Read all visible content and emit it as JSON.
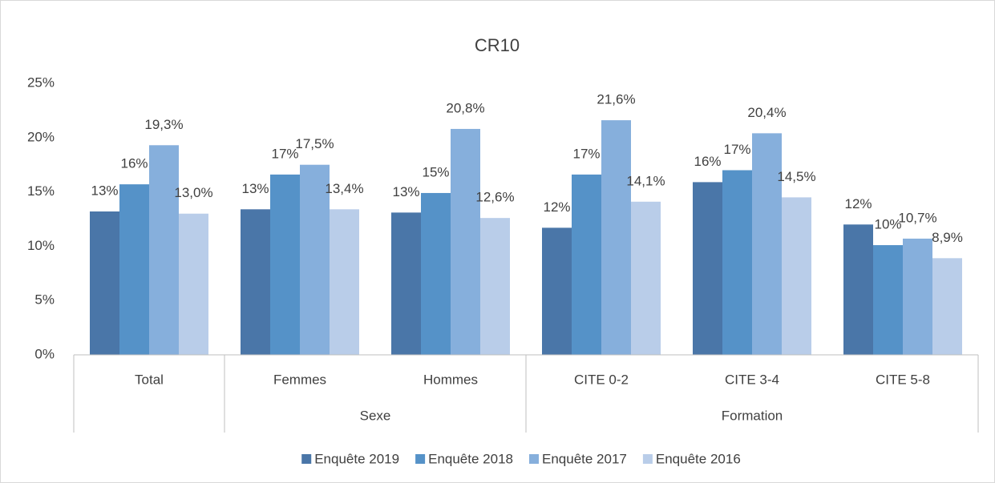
{
  "chart_data": {
    "type": "bar",
    "title": "CR10",
    "categories": [
      "Total",
      "Femmes",
      "Hommes",
      "CITE 0-2",
      "CITE 3-4",
      "CITE 5-8"
    ],
    "category_groups": [
      null,
      "Sexe",
      "Sexe",
      "Formation",
      "Formation",
      "Formation"
    ],
    "series": [
      {
        "name": "Enquête 2019",
        "color": "#4a76a8",
        "values": [
          13.2,
          13.4,
          13.1,
          11.7,
          15.9,
          12.0
        ],
        "value_labels": [
          "13%",
          "13%",
          "13%",
          "12%",
          "16%",
          "12%"
        ]
      },
      {
        "name": "Enquête 2018",
        "color": "#5592c8",
        "values": [
          15.7,
          16.6,
          14.9,
          16.6,
          17.0,
          10.1
        ],
        "value_labels": [
          "16%",
          "17%",
          "15%",
          "17%",
          "17%",
          "10%"
        ]
      },
      {
        "name": "Enquête 2017",
        "color": "#86afdc",
        "values": [
          19.3,
          17.5,
          20.8,
          21.6,
          20.4,
          10.7
        ],
        "value_labels": [
          "19,3%",
          "17,5%",
          "20,8%",
          "21,6%",
          "20,4%",
          "10,7%"
        ]
      },
      {
        "name": "Enquête 2016",
        "color": "#b9cde9",
        "values": [
          13.0,
          13.4,
          12.6,
          14.1,
          14.5,
          8.9
        ],
        "value_labels": [
          "13,0%",
          "13,4%",
          "12,6%",
          "14,1%",
          "14,5%",
          "8,9%"
        ]
      }
    ],
    "ylim": [
      0,
      25
    ],
    "yticks": [
      {
        "value": 0,
        "label": "0%"
      },
      {
        "value": 5,
        "label": "5%"
      },
      {
        "value": 10,
        "label": "10%"
      },
      {
        "value": 15,
        "label": "15%"
      },
      {
        "value": 20,
        "label": "20%"
      },
      {
        "value": 25,
        "label": "25%"
      }
    ],
    "grid": false,
    "legend": "bottom"
  }
}
